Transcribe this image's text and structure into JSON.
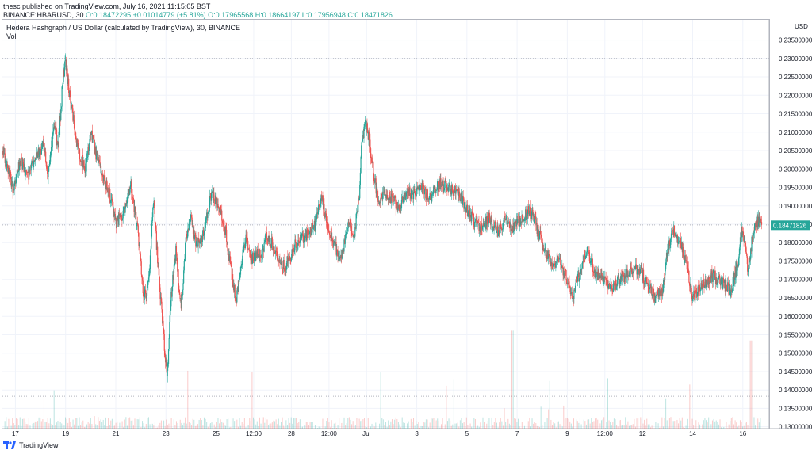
{
  "header": {
    "publish_line": "thesc published on TradingView.com, July 16, 2021 11:15:05 BST",
    "symbol_prefix": "BINANCE:HBARUSD, 30",
    "ohlc": "O:0.18472295 +0.01014779 (+5.81%) O:0.17965568 H:0.18664197 L:0.17956948 C:0.18471826"
  },
  "legend": {
    "title": "Hedera Hashgraph / US Dollar (calculated by TradingView), 30, BINANCE",
    "vol": "Vol"
  },
  "footer": {
    "brand": "TradingView"
  },
  "chart_data": {
    "type": "candlestick",
    "title": "Hedera Hashgraph / US Dollar (calculated by TradingView), 30, BINANCE",
    "currency_label": "USD",
    "last_price": "0.18471826",
    "ylim": [
      0.1295,
      0.2405
    ],
    "y_ticks": [
      "0.13000000",
      "0.13500000",
      "0.14000000",
      "0.14500000",
      "0.15000000",
      "0.15500000",
      "0.16000000",
      "0.16500000",
      "0.17000000",
      "0.17500000",
      "0.18000000",
      "0.18500000",
      "0.19000000",
      "0.19500000",
      "0.20000000",
      "0.20500000",
      "0.21000000",
      "0.21500000",
      "0.22000000",
      "0.22500000",
      "0.23000000",
      "0.23500000"
    ],
    "x_ticks": [
      "17",
      "19",
      "21",
      "23",
      "25",
      "12:00",
      "28",
      "12:00",
      "Jul",
      "3",
      "5",
      "7",
      "9",
      "12:00",
      "12",
      "14",
      "16"
    ],
    "x_tick_days": [
      1,
      3,
      5,
      7,
      9,
      10.5,
      12,
      13.5,
      15,
      17,
      19,
      21,
      23,
      24.5,
      26,
      28,
      30
    ],
    "x_range_days": [
      0.48,
      31.05
    ],
    "colors": {
      "up": "#26a69a",
      "down": "#ef5350",
      "grid": "#f0f3fa",
      "hline": "#b2b5be"
    },
    "reference_lines": [
      0.23,
      0.1848,
      0.1383
    ],
    "close_path": [
      [
        0.5,
        0.205
      ],
      [
        0.7,
        0.2
      ],
      [
        0.9,
        0.195
      ],
      [
        1.2,
        0.202
      ],
      [
        1.5,
        0.198
      ],
      [
        1.8,
        0.204
      ],
      [
        2.1,
        0.206
      ],
      [
        2.3,
        0.199
      ],
      [
        2.55,
        0.212
      ],
      [
        2.7,
        0.206
      ],
      [
        2.9,
        0.225
      ],
      [
        3.0,
        0.229
      ],
      [
        3.2,
        0.218
      ],
      [
        3.5,
        0.205
      ],
      [
        3.8,
        0.2
      ],
      [
        4.0,
        0.21
      ],
      [
        4.2,
        0.204
      ],
      [
        4.5,
        0.198
      ],
      [
        4.8,
        0.192
      ],
      [
        5.0,
        0.185
      ],
      [
        5.3,
        0.188
      ],
      [
        5.6,
        0.195
      ],
      [
        5.9,
        0.182
      ],
      [
        6.1,
        0.165
      ],
      [
        6.3,
        0.168
      ],
      [
        6.5,
        0.192
      ],
      [
        6.7,
        0.172
      ],
      [
        6.9,
        0.155
      ],
      [
        7.05,
        0.143
      ],
      [
        7.2,
        0.165
      ],
      [
        7.4,
        0.178
      ],
      [
        7.6,
        0.162
      ],
      [
        7.8,
        0.182
      ],
      [
        8.0,
        0.186
      ],
      [
        8.2,
        0.18
      ],
      [
        8.5,
        0.182
      ],
      [
        8.8,
        0.193
      ],
      [
        9.0,
        0.192
      ],
      [
        9.2,
        0.188
      ],
      [
        9.4,
        0.182
      ],
      [
        9.6,
        0.172
      ],
      [
        9.8,
        0.164
      ],
      [
        10.0,
        0.175
      ],
      [
        10.2,
        0.181
      ],
      [
        10.4,
        0.175
      ],
      [
        10.6,
        0.177
      ],
      [
        10.8,
        0.176
      ],
      [
        11.0,
        0.182
      ],
      [
        11.3,
        0.179
      ],
      [
        11.6,
        0.173
      ],
      [
        11.9,
        0.175
      ],
      [
        12.2,
        0.18
      ],
      [
        12.6,
        0.182
      ],
      [
        12.9,
        0.184
      ],
      [
        13.2,
        0.192
      ],
      [
        13.4,
        0.186
      ],
      [
        13.6,
        0.182
      ],
      [
        13.8,
        0.178
      ],
      [
        14.0,
        0.176
      ],
      [
        14.3,
        0.186
      ],
      [
        14.5,
        0.182
      ],
      [
        14.7,
        0.192
      ],
      [
        14.8,
        0.209
      ],
      [
        15.0,
        0.212
      ],
      [
        15.1,
        0.208
      ],
      [
        15.3,
        0.198
      ],
      [
        15.5,
        0.19
      ],
      [
        15.7,
        0.194
      ],
      [
        16.0,
        0.192
      ],
      [
        16.3,
        0.19
      ],
      [
        16.6,
        0.194
      ],
      [
        16.9,
        0.193
      ],
      [
        17.2,
        0.195
      ],
      [
        17.5,
        0.192
      ],
      [
        17.9,
        0.196
      ],
      [
        18.3,
        0.195
      ],
      [
        18.7,
        0.193
      ],
      [
        19.0,
        0.189
      ],
      [
        19.3,
        0.186
      ],
      [
        19.6,
        0.184
      ],
      [
        19.9,
        0.187
      ],
      [
        20.2,
        0.183
      ],
      [
        20.5,
        0.186
      ],
      [
        20.8,
        0.184
      ],
      [
        21.2,
        0.186
      ],
      [
        21.5,
        0.189
      ],
      [
        21.8,
        0.184
      ],
      [
        22.1,
        0.178
      ],
      [
        22.4,
        0.174
      ],
      [
        22.7,
        0.175
      ],
      [
        23.0,
        0.17
      ],
      [
        23.2,
        0.165
      ],
      [
        23.5,
        0.172
      ],
      [
        23.8,
        0.178
      ],
      [
        24.1,
        0.172
      ],
      [
        24.4,
        0.17
      ],
      [
        24.8,
        0.168
      ],
      [
        25.1,
        0.17
      ],
      [
        25.5,
        0.172
      ],
      [
        25.9,
        0.173
      ],
      [
        26.2,
        0.168
      ],
      [
        26.5,
        0.165
      ],
      [
        26.8,
        0.167
      ],
      [
        27.0,
        0.178
      ],
      [
        27.2,
        0.184
      ],
      [
        27.5,
        0.18
      ],
      [
        27.8,
        0.172
      ],
      [
        28.0,
        0.165
      ],
      [
        28.4,
        0.168
      ],
      [
        28.8,
        0.171
      ],
      [
        29.2,
        0.169
      ],
      [
        29.5,
        0.167
      ],
      [
        29.8,
        0.174
      ],
      [
        29.95,
        0.184
      ],
      [
        30.1,
        0.18
      ],
      [
        30.2,
        0.173
      ],
      [
        30.4,
        0.182
      ],
      [
        30.6,
        0.186
      ],
      [
        30.75,
        0.1847
      ]
    ],
    "volume_ylim": [
      0,
      0.11
    ]
  }
}
